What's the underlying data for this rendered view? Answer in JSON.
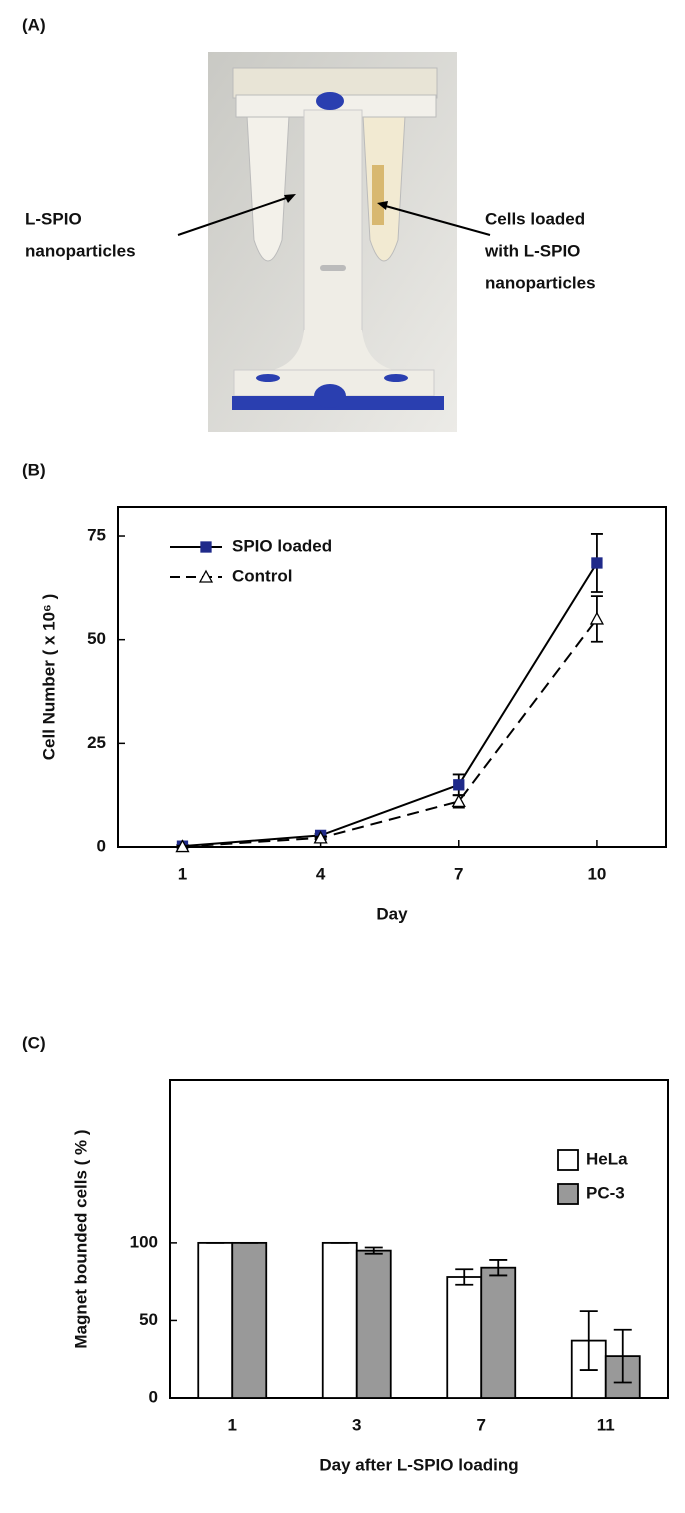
{
  "photo": {
    "label": "(A)",
    "left_annotation": [
      "L-SPIO",
      "nanoparticles"
    ],
    "right_annotation": [
      "Cells loaded",
      "with L-SPIO",
      "nanoparticles"
    ]
  },
  "chart_data": [
    {
      "type": "line",
      "label": "(B)",
      "x_label": "Day",
      "y_label": "Cell Number ( x 10⁶ )",
      "x": [
        1,
        4,
        7,
        10
      ],
      "xlim": [
        -0.4,
        11.5
      ],
      "xticks": [
        1,
        4,
        7,
        10
      ],
      "ylim": [
        0,
        82
      ],
      "yticks": [
        0,
        25,
        50,
        75
      ],
      "legend": "upper left",
      "series": [
        {
          "name": "SPIO loaded",
          "color": "#1f2a8a",
          "marker": "square",
          "dash": false,
          "values": [
            0.2,
            2.8,
            15,
            68.5
          ],
          "errors": [
            0.3,
            0.4,
            2.5,
            7
          ]
        },
        {
          "name": "Control",
          "color": "#000000",
          "marker": "triangle",
          "dash": true,
          "values": [
            0.1,
            2.2,
            11,
            55
          ],
          "errors": [
            0.2,
            0.3,
            1.5,
            5.5
          ]
        }
      ]
    },
    {
      "type": "bar",
      "label": "(C)",
      "x_label": "Day after L-SPIO loading",
      "y_label": "Magnet bounded cells ( % )",
      "categories": [
        "1",
        "3",
        "7",
        "11"
      ],
      "ylim": [
        0,
        205
      ],
      "yticks": [
        0,
        50,
        100
      ],
      "legend": "upper right",
      "series": [
        {
          "name": "HeLa",
          "color": "#ffffff",
          "values": [
            100,
            100,
            78,
            37
          ],
          "errors": [
            0,
            0,
            5,
            19
          ]
        },
        {
          "name": "PC-3",
          "color": "#999999",
          "values": [
            100,
            95,
            84,
            27
          ],
          "errors": [
            0,
            2,
            5,
            17
          ]
        }
      ]
    }
  ]
}
